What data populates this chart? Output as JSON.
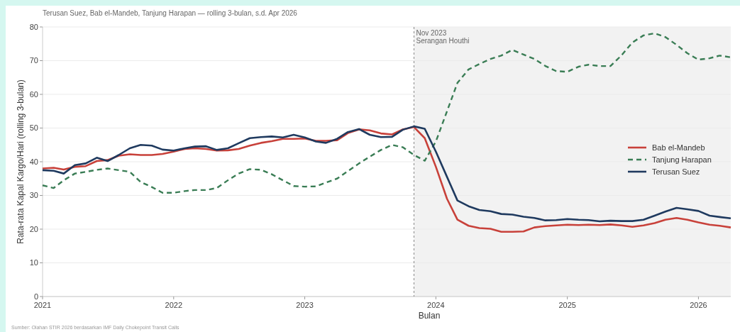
{
  "chart_data": {
    "type": "line",
    "title": "Terusan Suez, Bab el-Mandeb, Tanjung Harapan — rolling 3-bulan, s.d. Apr 2026",
    "xlabel": "Bulan",
    "ylabel": "Rata-rata Kapal Kargo/Hari (rolling 3-bulan)",
    "x": [
      "2021-01",
      "2021-02",
      "2021-03",
      "2021-04",
      "2021-05",
      "2021-06",
      "2021-07",
      "2021-08",
      "2021-09",
      "2021-10",
      "2021-11",
      "2021-12",
      "2022-01",
      "2022-02",
      "2022-03",
      "2022-04",
      "2022-05",
      "2022-06",
      "2022-07",
      "2022-08",
      "2022-09",
      "2022-10",
      "2022-11",
      "2022-12",
      "2023-01",
      "2023-02",
      "2023-03",
      "2023-04",
      "2023-05",
      "2023-06",
      "2023-07",
      "2023-08",
      "2023-09",
      "2023-10",
      "2023-11",
      "2023-12",
      "2024-01",
      "2024-02",
      "2024-03",
      "2024-04",
      "2024-05",
      "2024-06",
      "2024-07",
      "2024-08",
      "2024-09",
      "2024-10",
      "2024-11",
      "2024-12",
      "2025-01",
      "2025-02",
      "2025-03",
      "2025-04",
      "2025-05",
      "2025-06",
      "2025-07",
      "2025-08",
      "2025-09",
      "2025-10",
      "2025-11",
      "2025-12",
      "2026-01",
      "2026-02",
      "2026-03",
      "2026-04"
    ],
    "series": [
      {
        "name": "Bab el-Mandeb",
        "color": "#c8413a",
        "line_style": "solid",
        "values": [
          38,
          38.2,
          37.7,
          38.5,
          38.7,
          40.2,
          40.5,
          41.8,
          42.2,
          42,
          42,
          42.3,
          43,
          43.8,
          44,
          43.8,
          43.3,
          43.4,
          43.8,
          44.8,
          45.6,
          46.1,
          46.8,
          46.8,
          46.9,
          46.2,
          46.2,
          46.4,
          48.5,
          49.6,
          49.3,
          48.4,
          48.1,
          49.6,
          50.3,
          47,
          38.5,
          29,
          22.8,
          21,
          20.3,
          20.1,
          19.2,
          19.2,
          19.3,
          20.5,
          20.9,
          21.1,
          21.3,
          21.2,
          21.3,
          21.2,
          21.4,
          21.1,
          20.7,
          21.1,
          21.8,
          22.8,
          23.3,
          22.8,
          22,
          21.3,
          21,
          20.5
        ]
      },
      {
        "name": "Tanjung Harapan",
        "color": "#3a7d55",
        "line_style": "dashed",
        "values": [
          33,
          32.2,
          34.5,
          36.5,
          37,
          37.6,
          38,
          37.5,
          37,
          34,
          32.5,
          30.8,
          30.8,
          31.3,
          31.6,
          31.6,
          32.2,
          34.5,
          36.5,
          37.8,
          37.6,
          36.3,
          34.5,
          32.8,
          32.6,
          32.7,
          33.8,
          35,
          37.2,
          39.5,
          41.5,
          43.5,
          45,
          44.3,
          42,
          40.3,
          46,
          55,
          63.4,
          67.4,
          69,
          70.5,
          71.5,
          73.2,
          71.8,
          70.5,
          68.4,
          66.9,
          66.7,
          68.2,
          68.8,
          68.4,
          68.4,
          71.6,
          75.4,
          77.5,
          78.1,
          77,
          74.7,
          72.2,
          70.3,
          70.7,
          71.5,
          71
        ]
      },
      {
        "name": "Terusan Suez",
        "color": "#1f3a5f",
        "line_style": "solid",
        "values": [
          37.5,
          37.3,
          36.5,
          39,
          39.5,
          41.2,
          40.2,
          42,
          44,
          45,
          44.8,
          43.6,
          43.3,
          44,
          44.5,
          44.6,
          43.5,
          44,
          45.5,
          47,
          47.3,
          47.5,
          47.2,
          48,
          47.2,
          46,
          45.6,
          46.8,
          48.8,
          49.7,
          48,
          47.3,
          47.4,
          49.5,
          50.5,
          49.8,
          43,
          35.5,
          28.5,
          26.8,
          25.7,
          25.3,
          24.5,
          24.3,
          23.7,
          23.3,
          22.6,
          22.7,
          23,
          22.8,
          22.7,
          22.3,
          22.5,
          22.4,
          22.4,
          22.8,
          24,
          25.2,
          26.3,
          25.9,
          25.4,
          24,
          23.6,
          23.2
        ]
      }
    ],
    "xlim": [
      "2021-01",
      "2026-04"
    ],
    "xticks": [
      {
        "value": "2021-01",
        "label": "2021"
      },
      {
        "value": "2022-01",
        "label": "2022"
      },
      {
        "value": "2023-01",
        "label": "2023"
      },
      {
        "value": "2024-01",
        "label": "2024"
      },
      {
        "value": "2025-01",
        "label": "2025"
      },
      {
        "value": "2026-01",
        "label": "2026"
      }
    ],
    "ylim": [
      0,
      80
    ],
    "yticks": [
      0,
      10,
      20,
      30,
      40,
      50,
      60,
      70,
      80
    ],
    "grid": "y",
    "legend": "right",
    "ref_lines": [
      {
        "axis": "x",
        "value": "2023-11",
        "label": "Nov 2023\nSerangan Houthi",
        "color": "#888888",
        "line_style": "dashed"
      }
    ],
    "bands": [
      {
        "axis": "x",
        "from": "2023-11",
        "to": "2026-04",
        "color": "#f2f2f2"
      }
    ],
    "annotations": [
      "Sumber: Olahan STIR 2026 berdasarkan IMF Daily Chokepoint Transit Calls"
    ]
  }
}
